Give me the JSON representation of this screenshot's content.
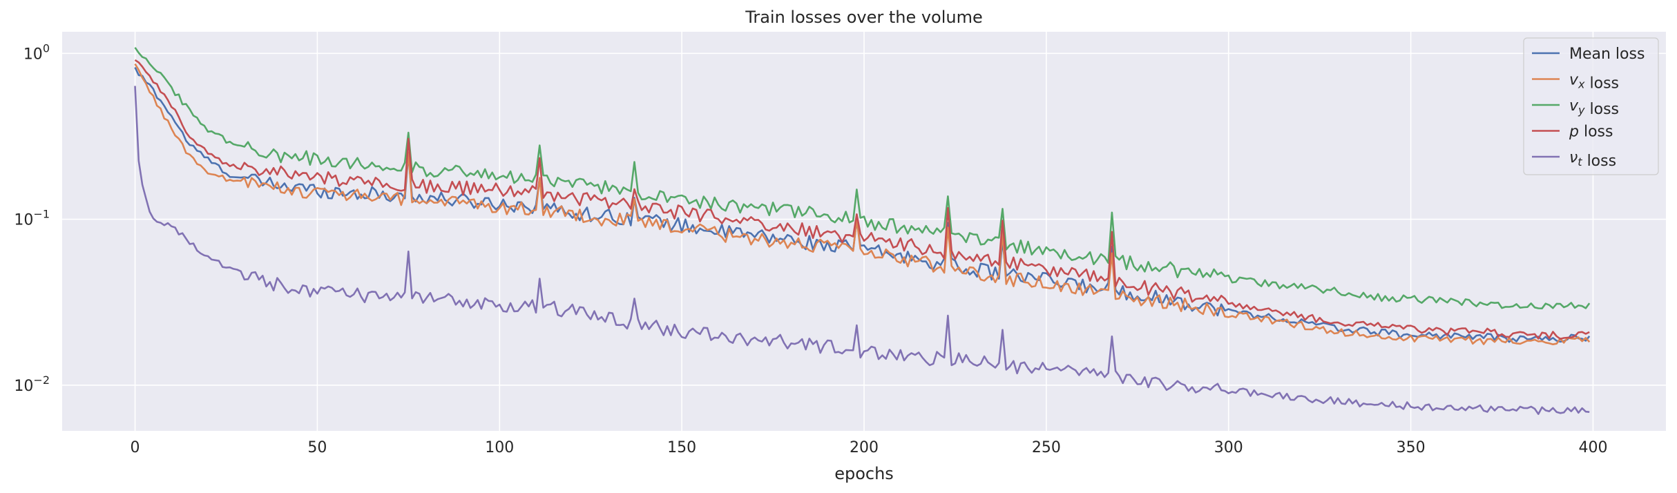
{
  "chart_data": {
    "type": "line",
    "title": "Train losses over the volume",
    "xlabel": "epochs",
    "ylabel": "",
    "yscale": "log",
    "xlim": [
      -20,
      420
    ],
    "ylim": [
      0.0053,
      1.35
    ],
    "x_ticks": [
      0,
      50,
      100,
      150,
      200,
      250,
      300,
      350,
      400
    ],
    "x_tick_labels": [
      "0",
      "50",
      "100",
      "150",
      "200",
      "250",
      "300",
      "350",
      "400"
    ],
    "y_ticks": [
      1,
      0.1,
      0.01
    ],
    "y_tick_labels": [
      {
        "base": "10",
        "exp": "0"
      },
      {
        "base": "10",
        "exp": "−1"
      },
      {
        "base": "10",
        "exp": "−2"
      }
    ],
    "grid": true,
    "legend_position": "top-right",
    "series": [
      {
        "name": "Mean loss",
        "label_parts": [
          {
            "t": "Mean loss",
            "i": false
          }
        ],
        "color": "#4c72b0",
        "anchors": [
          [
            0,
            0.8
          ],
          [
            5,
            0.6
          ],
          [
            10,
            0.42
          ],
          [
            15,
            0.28
          ],
          [
            20,
            0.23
          ],
          [
            25,
            0.19
          ],
          [
            30,
            0.175
          ],
          [
            40,
            0.16
          ],
          [
            50,
            0.15
          ],
          [
            60,
            0.145
          ],
          [
            70,
            0.14
          ],
          [
            80,
            0.135
          ],
          [
            90,
            0.13
          ],
          [
            100,
            0.125
          ],
          [
            110,
            0.12
          ],
          [
            120,
            0.11
          ],
          [
            130,
            0.105
          ],
          [
            140,
            0.1
          ],
          [
            150,
            0.092
          ],
          [
            160,
            0.085
          ],
          [
            170,
            0.08
          ],
          [
            180,
            0.075
          ],
          [
            190,
            0.07
          ],
          [
            200,
            0.066
          ],
          [
            210,
            0.06
          ],
          [
            220,
            0.055
          ],
          [
            230,
            0.05
          ],
          [
            240,
            0.046
          ],
          [
            250,
            0.043
          ],
          [
            260,
            0.04
          ],
          [
            270,
            0.037
          ],
          [
            280,
            0.034
          ],
          [
            290,
            0.031
          ],
          [
            300,
            0.028
          ],
          [
            310,
            0.026
          ],
          [
            320,
            0.024
          ],
          [
            330,
            0.022
          ],
          [
            340,
            0.021
          ],
          [
            350,
            0.02
          ],
          [
            360,
            0.02
          ],
          [
            370,
            0.0195
          ],
          [
            380,
            0.019
          ],
          [
            390,
            0.019
          ],
          [
            400,
            0.0195
          ]
        ]
      },
      {
        "name": "v_x loss",
        "label_parts": [
          {
            "t": "v",
            "i": true
          },
          {
            "t": "x",
            "i": true,
            "sub": true
          },
          {
            "t": " loss",
            "i": false
          }
        ],
        "color": "#dd8452",
        "anchors": [
          [
            0,
            0.85
          ],
          [
            5,
            0.55
          ],
          [
            10,
            0.35
          ],
          [
            15,
            0.24
          ],
          [
            20,
            0.19
          ],
          [
            25,
            0.175
          ],
          [
            30,
            0.165
          ],
          [
            40,
            0.155
          ],
          [
            50,
            0.145
          ],
          [
            60,
            0.14
          ],
          [
            70,
            0.135
          ],
          [
            80,
            0.13
          ],
          [
            90,
            0.125
          ],
          [
            100,
            0.12
          ],
          [
            110,
            0.115
          ],
          [
            120,
            0.108
          ],
          [
            130,
            0.1
          ],
          [
            140,
            0.095
          ],
          [
            150,
            0.088
          ],
          [
            160,
            0.082
          ],
          [
            170,
            0.077
          ],
          [
            180,
            0.072
          ],
          [
            190,
            0.068
          ],
          [
            200,
            0.063
          ],
          [
            210,
            0.058
          ],
          [
            220,
            0.053
          ],
          [
            230,
            0.048
          ],
          [
            240,
            0.044
          ],
          [
            250,
            0.041
          ],
          [
            260,
            0.038
          ],
          [
            270,
            0.035
          ],
          [
            280,
            0.032
          ],
          [
            290,
            0.03
          ],
          [
            300,
            0.027
          ],
          [
            310,
            0.025
          ],
          [
            320,
            0.023
          ],
          [
            330,
            0.021
          ],
          [
            340,
            0.02
          ],
          [
            350,
            0.019
          ],
          [
            360,
            0.019
          ],
          [
            370,
            0.0185
          ],
          [
            380,
            0.0185
          ],
          [
            390,
            0.0185
          ],
          [
            400,
            0.0185
          ]
        ]
      },
      {
        "name": "v_y loss",
        "label_parts": [
          {
            "t": "v",
            "i": true
          },
          {
            "t": "y",
            "i": true,
            "sub": true
          },
          {
            "t": " loss",
            "i": false
          }
        ],
        "color": "#55a868",
        "anchors": [
          [
            0,
            1.08
          ],
          [
            5,
            0.85
          ],
          [
            10,
            0.62
          ],
          [
            15,
            0.45
          ],
          [
            20,
            0.35
          ],
          [
            25,
            0.3
          ],
          [
            30,
            0.27
          ],
          [
            40,
            0.245
          ],
          [
            50,
            0.23
          ],
          [
            60,
            0.22
          ],
          [
            70,
            0.21
          ],
          [
            80,
            0.2
          ],
          [
            90,
            0.19
          ],
          [
            100,
            0.18
          ],
          [
            110,
            0.175
          ],
          [
            120,
            0.165
          ],
          [
            130,
            0.155
          ],
          [
            140,
            0.145
          ],
          [
            150,
            0.135
          ],
          [
            160,
            0.125
          ],
          [
            170,
            0.118
          ],
          [
            180,
            0.112
          ],
          [
            190,
            0.105
          ],
          [
            200,
            0.098
          ],
          [
            210,
            0.09
          ],
          [
            220,
            0.083
          ],
          [
            230,
            0.076
          ],
          [
            240,
            0.07
          ],
          [
            250,
            0.065
          ],
          [
            260,
            0.06
          ],
          [
            270,
            0.056
          ],
          [
            280,
            0.052
          ],
          [
            290,
            0.048
          ],
          [
            300,
            0.044
          ],
          [
            310,
            0.041
          ],
          [
            320,
            0.039
          ],
          [
            330,
            0.037
          ],
          [
            340,
            0.034
          ],
          [
            350,
            0.033
          ],
          [
            360,
            0.032
          ],
          [
            370,
            0.031
          ],
          [
            380,
            0.03
          ],
          [
            390,
            0.03
          ],
          [
            400,
            0.03
          ]
        ]
      },
      {
        "name": "p loss",
        "label_parts": [
          {
            "t": "p",
            "i": true
          },
          {
            "t": " loss",
            "i": false
          }
        ],
        "color": "#c44e52",
        "anchors": [
          [
            0,
            0.92
          ],
          [
            5,
            0.68
          ],
          [
            10,
            0.48
          ],
          [
            15,
            0.32
          ],
          [
            20,
            0.25
          ],
          [
            25,
            0.22
          ],
          [
            30,
            0.205
          ],
          [
            40,
            0.19
          ],
          [
            50,
            0.18
          ],
          [
            60,
            0.17
          ],
          [
            70,
            0.165
          ],
          [
            80,
            0.16
          ],
          [
            90,
            0.155
          ],
          [
            100,
            0.15
          ],
          [
            110,
            0.145
          ],
          [
            120,
            0.135
          ],
          [
            130,
            0.125
          ],
          [
            140,
            0.118
          ],
          [
            150,
            0.11
          ],
          [
            160,
            0.102
          ],
          [
            170,
            0.095
          ],
          [
            180,
            0.088
          ],
          [
            190,
            0.083
          ],
          [
            200,
            0.077
          ],
          [
            210,
            0.071
          ],
          [
            220,
            0.065
          ],
          [
            230,
            0.059
          ],
          [
            240,
            0.054
          ],
          [
            250,
            0.05
          ],
          [
            260,
            0.046
          ],
          [
            270,
            0.042
          ],
          [
            280,
            0.038
          ],
          [
            290,
            0.035
          ],
          [
            300,
            0.031
          ],
          [
            310,
            0.028
          ],
          [
            320,
            0.026
          ],
          [
            330,
            0.024
          ],
          [
            340,
            0.023
          ],
          [
            350,
            0.022
          ],
          [
            360,
            0.021
          ],
          [
            370,
            0.021
          ],
          [
            380,
            0.02
          ],
          [
            390,
            0.02
          ],
          [
            400,
            0.02
          ]
        ]
      },
      {
        "name": "nu_t loss",
        "label_parts": [
          {
            "t": "ν",
            "i": true
          },
          {
            "t": "t",
            "i": true,
            "sub": true
          },
          {
            "t": " loss",
            "i": false
          }
        ],
        "color": "#8172b3",
        "anchors": [
          [
            0,
            0.65
          ],
          [
            1,
            0.23
          ],
          [
            2,
            0.16
          ],
          [
            3,
            0.13
          ],
          [
            5,
            0.1
          ],
          [
            8,
            0.095
          ],
          [
            10,
            0.092
          ],
          [
            15,
            0.072
          ],
          [
            20,
            0.06
          ],
          [
            25,
            0.052
          ],
          [
            30,
            0.046
          ],
          [
            35,
            0.043
          ],
          [
            40,
            0.04
          ],
          [
            50,
            0.037
          ],
          [
            60,
            0.035
          ],
          [
            70,
            0.034
          ],
          [
            80,
            0.033
          ],
          [
            90,
            0.032
          ],
          [
            100,
            0.031
          ],
          [
            110,
            0.03
          ],
          [
            120,
            0.028
          ],
          [
            130,
            0.025
          ],
          [
            140,
            0.023
          ],
          [
            150,
            0.021
          ],
          [
            160,
            0.02
          ],
          [
            170,
            0.019
          ],
          [
            180,
            0.018
          ],
          [
            190,
            0.017
          ],
          [
            200,
            0.016
          ],
          [
            210,
            0.015
          ],
          [
            220,
            0.0145
          ],
          [
            230,
            0.014
          ],
          [
            240,
            0.013
          ],
          [
            250,
            0.0125
          ],
          [
            260,
            0.012
          ],
          [
            270,
            0.011
          ],
          [
            280,
            0.0102
          ],
          [
            290,
            0.0097
          ],
          [
            300,
            0.0093
          ],
          [
            310,
            0.0088
          ],
          [
            320,
            0.0084
          ],
          [
            330,
            0.008
          ],
          [
            340,
            0.0077
          ],
          [
            350,
            0.0075
          ],
          [
            360,
            0.0073
          ],
          [
            370,
            0.0072
          ],
          [
            380,
            0.0071
          ],
          [
            390,
            0.007
          ],
          [
            400,
            0.0072
          ]
        ]
      }
    ],
    "spikes": [
      [
        0,
        0.07
      ],
      [
        75,
        0.75
      ],
      [
        111,
        0.55
      ],
      [
        137,
        0.4
      ],
      [
        198,
        0.5
      ],
      [
        223,
        0.8
      ],
      [
        238,
        0.7
      ],
      [
        268,
        0.8
      ]
    ]
  }
}
